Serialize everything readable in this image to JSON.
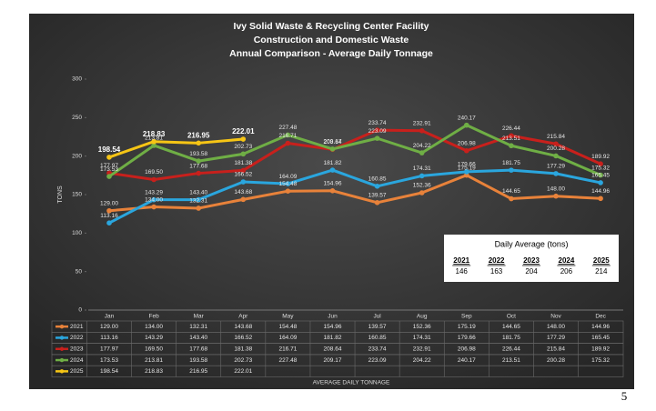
{
  "chart_data": {
    "type": "line",
    "title": [
      "Ivy Solid Waste & Recycling Center Facility",
      "Construction and Domestic Waste",
      "Annual Comparison - Average Daily Tonnage"
    ],
    "ylabel": "TONS",
    "xlabel": "AVERAGE DAILY TONNAGE",
    "categories": [
      "Jan",
      "Feb",
      "Mar",
      "Apr",
      "May",
      "Jun",
      "Jul",
      "Aug",
      "Sep",
      "Oct",
      "Nov",
      "Dec"
    ],
    "ylim": [
      0,
      300
    ],
    "yticks": [
      0,
      50,
      100,
      150,
      200,
      250,
      300
    ],
    "grid": false,
    "series": [
      {
        "name": "2021",
        "color": "#e8823a",
        "values": [
          129.0,
          134.0,
          132.31,
          143.68,
          154.48,
          154.96,
          139.57,
          152.36,
          175.19,
          144.65,
          148.0,
          144.96
        ],
        "value_labels": [
          "129.00",
          "134.00",
          "132.31",
          "143.68",
          "154.48",
          "154.96",
          "139.57",
          "152.36",
          "175.19",
          "144.65",
          "148.00",
          "144.96"
        ]
      },
      {
        "name": "2022",
        "color": "#2aa6de",
        "values": [
          113.16,
          143.29,
          143.4,
          166.52,
          164.09,
          181.82,
          160.85,
          174.31,
          179.66,
          181.75,
          177.29,
          165.45
        ],
        "value_labels": [
          "113.16",
          "143.29",
          "143.40",
          "166.52",
          "164.09",
          "181.82",
          "160.85",
          "174.31",
          "179.66",
          "181.75",
          "177.29",
          "165.45"
        ]
      },
      {
        "name": "2023",
        "color": "#c8201c",
        "values": [
          177.97,
          169.5,
          177.68,
          181.38,
          216.71,
          208.64,
          233.74,
          232.91,
          206.98,
          226.44,
          215.84,
          189.92
        ],
        "value_labels": [
          "177.97",
          "169.50",
          "177.68",
          "181.38",
          "216.71",
          "208.64",
          "233.74",
          "232.91",
          "206.98",
          "226.44",
          "215.84",
          "189.92"
        ]
      },
      {
        "name": "2024",
        "color": "#6fae45",
        "values": [
          173.53,
          213.81,
          193.58,
          202.73,
          227.48,
          209.17,
          223.09,
          204.22,
          240.17,
          213.51,
          200.28,
          175.32
        ],
        "value_labels": [
          "173.53",
          "213.81",
          "193.58",
          "202.73",
          "227.48",
          "209.17",
          "223.09",
          "204.22",
          "240.17",
          "213.51",
          "200.28",
          "175.32"
        ]
      },
      {
        "name": "2025",
        "color": "#f6c515",
        "values": [
          198.54,
          218.83,
          216.95,
          222.01,
          null,
          null,
          null,
          null,
          null,
          null,
          null,
          null
        ],
        "value_labels": [
          "198.54",
          "218.83",
          "216.95",
          "222.01",
          null,
          null,
          null,
          null,
          null,
          null,
          null,
          null
        ]
      }
    ],
    "inset": {
      "title": "Daily Average (tons)",
      "years": [
        "2021",
        "2022",
        "2023",
        "2024",
        "2025"
      ],
      "values": [
        146,
        163,
        204,
        206,
        214
      ]
    }
  },
  "page_number": "5"
}
